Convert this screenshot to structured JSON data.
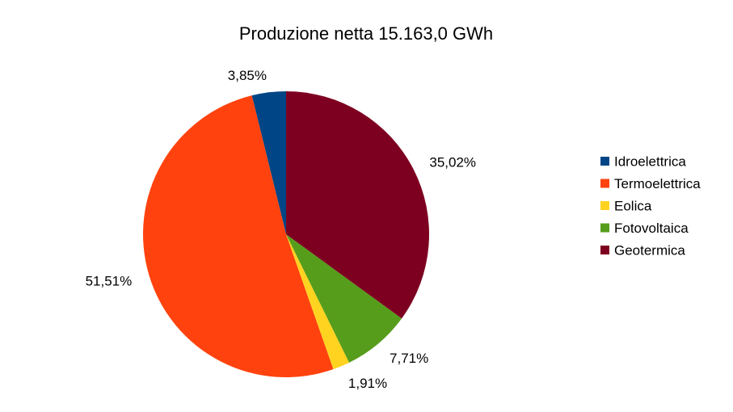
{
  "chart_data": {
    "type": "pie",
    "title": "Produzione netta 15.163,0 GWh",
    "categories": [
      "Idroelettrica",
      "Termoelettrica",
      "Eolica",
      "Fotovoltaica",
      "Geotermica"
    ],
    "values": [
      3.85,
      51.51,
      1.91,
      7.71,
      35.02
    ],
    "value_labels": [
      "3,85%",
      "51,51%",
      "1,91%",
      "7,71%",
      "35,02%"
    ],
    "colors": [
      "#004586",
      "#ff420e",
      "#ffd320",
      "#579d1c",
      "#7e0021"
    ],
    "legend": "right"
  }
}
